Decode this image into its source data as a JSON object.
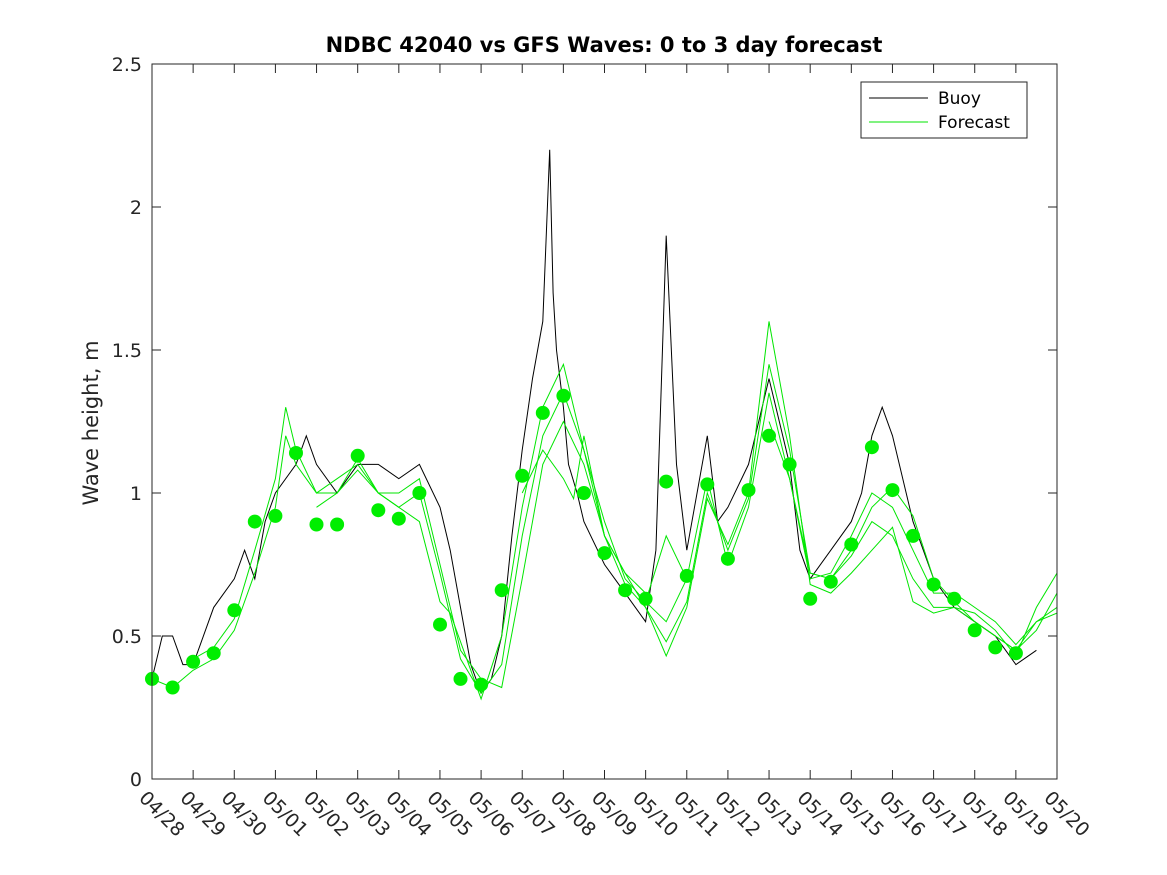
{
  "chart_data": {
    "type": "line",
    "title": "NDBC 42040 vs GFS Waves: 0 to 3 day forecast",
    "ylabel": "Wave height, m",
    "xlabel": "",
    "ylim": [
      0,
      2.5
    ],
    "yticks": [
      0,
      0.5,
      1,
      1.5,
      2,
      2.5
    ],
    "ytick_labels": [
      "0",
      "0.5",
      "1",
      "1.5",
      "2",
      "2.5"
    ],
    "xlim_days": [
      0,
      22
    ],
    "xtick_labels": [
      "04/28",
      "04/29",
      "04/30",
      "05/01",
      "05/02",
      "05/03",
      "05/04",
      "05/05",
      "05/06",
      "05/07",
      "05/08",
      "05/09",
      "05/10",
      "05/11",
      "05/12",
      "05/13",
      "05/14",
      "05/15",
      "05/16",
      "05/17",
      "05/18",
      "05/19",
      "05/20"
    ],
    "legend": {
      "position": "top-right",
      "entries": [
        {
          "label": "Buoy",
          "color": "#000000"
        },
        {
          "label": "Forecast",
          "color": "#00e600"
        }
      ]
    },
    "colors": {
      "buoy": "#000000",
      "forecast": "#00e600",
      "markers": "#00ee00"
    },
    "buoy": {
      "name": "Buoy",
      "x": [
        "04/28 00:00",
        "04/28 06:00",
        "04/28 12:00",
        "04/28 18:00",
        "04/29 00:00",
        "04/29 12:00",
        "04/30 00:00",
        "04/30 06:00",
        "04/30 12:00",
        "04/30 18:00",
        "05/01 00:00",
        "05/01 12:00",
        "05/01 18:00",
        "05/02 00:00",
        "05/02 12:00",
        "05/03 00:00",
        "05/03 12:00",
        "05/04 00:00",
        "05/04 12:00",
        "05/05 00:00",
        "05/05 06:00",
        "05/05 12:00",
        "05/05 18:00",
        "05/06 00:00",
        "05/06 06:00",
        "05/06 12:00",
        "05/06 18:00",
        "05/07 00:00",
        "05/07 06:00",
        "05/07 12:00",
        "05/07 16:00",
        "05/07 18:00",
        "05/07 20:00",
        "05/08 00:00",
        "05/08 03:00",
        "05/08 08:00",
        "05/08 12:00",
        "05/09 00:00",
        "05/09 06:00",
        "05/09 12:00",
        "05/09 18:00",
        "05/10 00:00",
        "05/10 06:00",
        "05/10 12:00",
        "05/10 18:00",
        "05/11 00:00",
        "05/11 12:00",
        "05/11 18:00",
        "05/12 00:00",
        "05/12 12:00",
        "05/13 00:00",
        "05/13 12:00",
        "05/13 18:00",
        "05/14 00:00",
        "05/14 12:00",
        "05/15 00:00",
        "05/15 06:00",
        "05/15 12:00",
        "05/15 18:00",
        "05/16 00:00",
        "05/16 12:00",
        "05/17 00:00",
        "05/17 12:00",
        "05/18 00:00",
        "05/18 12:00",
        "05/19 00:00",
        "05/19 12:00"
      ],
      "values": [
        0.35,
        0.5,
        0.5,
        0.4,
        0.4,
        0.6,
        0.7,
        0.8,
        0.7,
        0.9,
        1.0,
        1.1,
        1.2,
        1.1,
        1.0,
        1.1,
        1.1,
        1.05,
        1.1,
        0.95,
        0.8,
        0.6,
        0.4,
        0.3,
        0.35,
        0.5,
        0.85,
        1.15,
        1.4,
        1.6,
        2.2,
        1.7,
        1.5,
        1.3,
        1.1,
        1.0,
        0.9,
        0.75,
        0.7,
        0.65,
        0.6,
        0.55,
        0.8,
        1.9,
        1.1,
        0.8,
        1.2,
        0.9,
        0.95,
        1.1,
        1.4,
        1.1,
        0.8,
        0.7,
        0.8,
        0.9,
        1.0,
        1.2,
        1.3,
        1.2,
        0.9,
        0.7,
        0.6,
        0.55,
        0.5,
        0.4,
        0.45
      ]
    },
    "forecast_series": [
      {
        "x": [
          "04/28 00:00",
          "04/28 12:00",
          "04/29 00:00",
          "04/29 12:00",
          "04/30 00:00",
          "04/30 12:00",
          "05/01 00:00",
          "05/01 06:00",
          "05/01 12:00",
          "05/02 00:00",
          "05/02 12:00",
          "05/03 00:00",
          "05/03 12:00",
          "05/04 00:00",
          "05/04 12:00",
          "05/05 00:00",
          "05/05 12:00",
          "05/06 00:00",
          "05/06 12:00",
          "05/07 00:00",
          "05/07 12:00",
          "05/08 00:00",
          "05/08 12:00",
          "05/09 00:00",
          "05/09 12:00",
          "05/10 00:00"
        ],
        "values": [
          0.35,
          0.32,
          0.38,
          0.42,
          0.52,
          0.72,
          0.95,
          1.2,
          1.1,
          1.0,
          1.05,
          1.1,
          1.0,
          1.0,
          1.05,
          0.75,
          0.45,
          0.35,
          0.32,
          0.7,
          1.1,
          1.25,
          1.1,
          0.85,
          0.72,
          0.65
        ]
      },
      {
        "x": [
          "04/29 00:00",
          "04/29 12:00",
          "04/30 00:00",
          "04/30 12:00",
          "05/01 00:00",
          "05/01 06:00",
          "05/01 12:00",
          "05/02 00:00",
          "05/02 12:00",
          "05/03 00:00",
          "05/03 12:00",
          "05/04 00:00",
          "05/04 12:00",
          "05/05 00:00",
          "05/05 12:00",
          "05/06 00:00",
          "05/06 12:00",
          "05/07 00:00",
          "05/07 12:00",
          "05/08 00:00",
          "05/08 12:00",
          "05/09 00:00",
          "05/09 12:00",
          "05/10 00:00",
          "05/10 12:00",
          "05/11 00:00"
        ],
        "values": [
          0.42,
          0.46,
          0.56,
          0.8,
          1.05,
          1.3,
          1.15,
          1.0,
          1.0,
          1.08,
          1.0,
          0.95,
          1.0,
          0.72,
          0.42,
          0.3,
          0.4,
          0.85,
          1.2,
          1.35,
          1.15,
          0.9,
          0.7,
          0.62,
          0.55,
          0.7
        ]
      },
      {
        "x": [
          "05/02 00:00",
          "05/02 12:00",
          "05/03 00:00",
          "05/03 12:00",
          "05/04 00:00",
          "05/04 12:00",
          "05/05 00:00",
          "05/05 06:00",
          "05/05 12:00",
          "05/06 00:00",
          "05/06 12:00",
          "05/07 00:00",
          "05/07 12:00",
          "05/08 00:00",
          "05/08 12:00",
          "05/09 00:00",
          "05/09 12:00",
          "05/10 00:00",
          "05/10 12:00",
          "05/11 00:00",
          "05/11 12:00",
          "05/12 00:00",
          "05/12 12:00",
          "05/13 00:00",
          "05/13 12:00",
          "05/14 00:00",
          "05/14 12:00",
          "05/15 00:00",
          "05/15 12:00",
          "05/16 00:00",
          "05/16 12:00",
          "05/17 00:00",
          "05/17 12:00",
          "05/18 00:00",
          "05/18 12:00",
          "05/19 00:00",
          "05/19 12:00",
          "05/20 00:00"
        ],
        "values": [
          0.95,
          1.0,
          1.12,
          1.0,
          0.95,
          0.9,
          0.62,
          0.58,
          0.48,
          0.28,
          0.5,
          0.95,
          1.3,
          1.45,
          1.15,
          0.85,
          0.68,
          0.6,
          0.48,
          0.62,
          1.0,
          0.8,
          0.98,
          1.45,
          1.15,
          0.72,
          0.7,
          0.8,
          0.95,
          1.02,
          0.92,
          0.7,
          0.62,
          0.55,
          0.5,
          0.45,
          0.52,
          0.65
        ]
      },
      {
        "x": [
          "05/07 00:00",
          "05/07 12:00",
          "05/08 00:00",
          "05/08 06:00",
          "05/08 12:00",
          "05/09 00:00",
          "05/09 12:00",
          "05/10 00:00",
          "05/10 12:00",
          "05/11 00:00",
          "05/11 12:00",
          "05/12 00:00",
          "05/12 12:00",
          "05/13 00:00",
          "05/13 12:00",
          "05/14 00:00",
          "05/14 12:00",
          "05/15 00:00",
          "05/15 12:00",
          "05/16 00:00",
          "05/16 12:00",
          "05/17 00:00",
          "05/17 12:00",
          "05/18 00:00",
          "05/18 12:00",
          "05/19 00:00",
          "05/19 12:00",
          "05/20 00:00"
        ],
        "values": [
          1.0,
          1.15,
          1.05,
          0.98,
          1.2,
          0.85,
          0.72,
          0.6,
          0.43,
          0.6,
          0.98,
          0.82,
          1.0,
          1.6,
          1.2,
          0.68,
          0.65,
          0.72,
          0.8,
          0.88,
          0.62,
          0.58,
          0.6,
          0.58,
          0.52,
          0.43,
          0.6,
          0.72
        ]
      },
      {
        "x": [
          "05/10 00:00",
          "05/10 12:00",
          "05/11 00:00",
          "05/11 12:00",
          "05/12 00:00",
          "05/12 12:00",
          "05/13 00:00",
          "05/13 12:00",
          "05/14 00:00",
          "05/14 12:00",
          "05/15 00:00",
          "05/15 12:00",
          "05/16 00:00",
          "05/16 12:00",
          "05/17 00:00",
          "05/17 12:00",
          "05/18 00:00",
          "05/18 12:00",
          "05/19 00:00",
          "05/19 12:00",
          "05/20 00:00"
        ],
        "values": [
          0.62,
          0.85,
          0.7,
          1.05,
          0.75,
          0.95,
          1.35,
          1.05,
          0.7,
          0.72,
          0.85,
          1.0,
          0.95,
          0.8,
          0.65,
          0.65,
          0.6,
          0.55,
          0.47,
          0.55,
          0.6
        ]
      },
      {
        "x": [
          "05/13 00:00",
          "05/13 12:00",
          "05/14 00:00",
          "05/14 12:00",
          "05/15 00:00",
          "05/15 12:00",
          "05/16 00:00",
          "05/16 12:00",
          "05/17 00:00",
          "05/17 12:00",
          "05/18 00:00",
          "05/18 12:00",
          "05/19 00:00",
          "05/19 12:00",
          "05/20 00:00"
        ],
        "values": [
          1.25,
          1.05,
          0.72,
          0.7,
          0.78,
          0.9,
          0.85,
          0.7,
          0.6,
          0.6,
          0.55,
          0.5,
          0.45,
          0.55,
          0.58
        ]
      }
    ],
    "forecast_markers": {
      "x": [
        "04/28 00:00",
        "04/28 12:00",
        "04/29 00:00",
        "04/29 12:00",
        "04/30 00:00",
        "04/30 12:00",
        "05/01 00:00",
        "05/01 12:00",
        "05/02 00:00",
        "05/02 12:00",
        "05/03 00:00",
        "05/03 12:00",
        "05/04 00:00",
        "05/04 12:00",
        "05/05 00:00",
        "05/05 12:00",
        "05/06 00:00",
        "05/06 12:00",
        "05/07 00:00",
        "05/07 12:00",
        "05/08 00:00",
        "05/08 12:00",
        "05/09 00:00",
        "05/09 12:00",
        "05/10 00:00",
        "05/10 12:00",
        "05/11 00:00",
        "05/11 12:00",
        "05/12 00:00",
        "05/12 12:00",
        "05/13 00:00",
        "05/13 12:00",
        "05/14 00:00",
        "05/14 12:00",
        "05/15 00:00",
        "05/15 12:00",
        "05/16 00:00",
        "05/16 12:00",
        "05/17 00:00",
        "05/17 12:00",
        "05/18 00:00",
        "05/18 12:00",
        "05/19 00:00"
      ],
      "values": [
        0.35,
        0.32,
        0.41,
        0.44,
        0.59,
        0.9,
        0.92,
        1.14,
        0.89,
        0.89,
        1.13,
        0.94,
        0.91,
        1.0,
        0.54,
        0.35,
        0.33,
        0.66,
        1.06,
        1.28,
        1.34,
        1.0,
        0.79,
        0.66,
        0.63,
        1.04,
        0.71,
        1.03,
        0.77,
        1.01,
        1.2,
        1.1,
        0.63,
        0.69,
        0.82,
        1.16,
        1.01,
        0.85,
        0.68,
        0.63,
        0.52,
        0.46,
        0.44
      ]
    }
  }
}
